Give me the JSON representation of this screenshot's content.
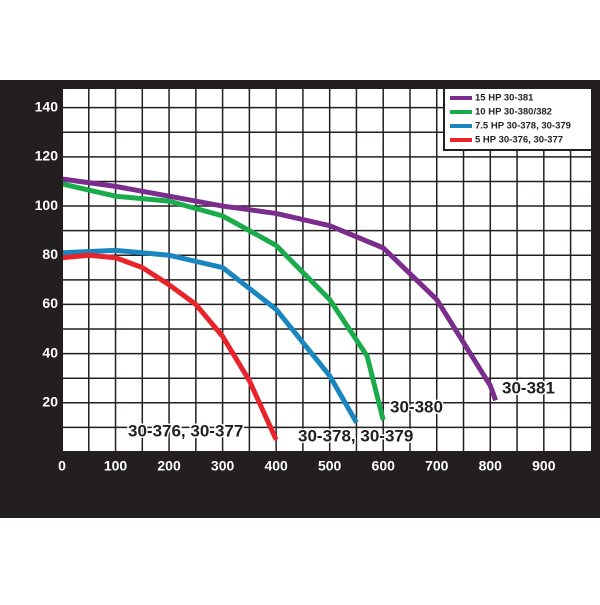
{
  "chart_data": {
    "type": "line",
    "xlim": [
      0,
      990
    ],
    "ylim": [
      0,
      148
    ],
    "xticks": [
      0,
      100,
      200,
      300,
      400,
      500,
      600,
      700,
      800,
      900
    ],
    "yticks": [
      20,
      40,
      60,
      80,
      100,
      120,
      140
    ],
    "x_gridlines": [
      50,
      100,
      150,
      200,
      250,
      300,
      350,
      400,
      450,
      500,
      550,
      600,
      650,
      700,
      750,
      800,
      850,
      900,
      950
    ],
    "y_gridlines": [
      10,
      20,
      30,
      40,
      50,
      60,
      70,
      80,
      90,
      100,
      110,
      120,
      130,
      140
    ],
    "legend": "upper right",
    "series": [
      {
        "name": "15 HP  30-381",
        "color": "#7b2d8e",
        "x": [
          0,
          100,
          200,
          300,
          400,
          500,
          600,
          700,
          800,
          810
        ],
        "values": [
          111,
          108,
          104,
          100,
          97,
          92,
          83,
          62,
          27,
          21
        ]
      },
      {
        "name": "10 HP  30-380/382",
        "color": "#1aab4b",
        "x": [
          0,
          100,
          200,
          300,
          400,
          500,
          570,
          600
        ],
        "values": [
          109,
          104,
          102,
          96,
          84,
          62,
          39,
          13
        ]
      },
      {
        "name": "7.5 HP  30-378, 30-379",
        "color": "#1a86c0",
        "x": [
          0,
          100,
          200,
          300,
          400,
          500,
          550
        ],
        "values": [
          81,
          82,
          80,
          75,
          58,
          31,
          12
        ]
      },
      {
        "name": "5 HP  30-376, 30-377",
        "color": "#e8232a",
        "x": [
          0,
          50,
          100,
          150,
          200,
          250,
          300,
          350,
          400
        ],
        "values": [
          79,
          80,
          79,
          75,
          68,
          60,
          47,
          29,
          5
        ]
      }
    ],
    "annotations": [
      "30-381",
      "30-380",
      "30-378, 30-379",
      "30-376, 30-377"
    ]
  }
}
